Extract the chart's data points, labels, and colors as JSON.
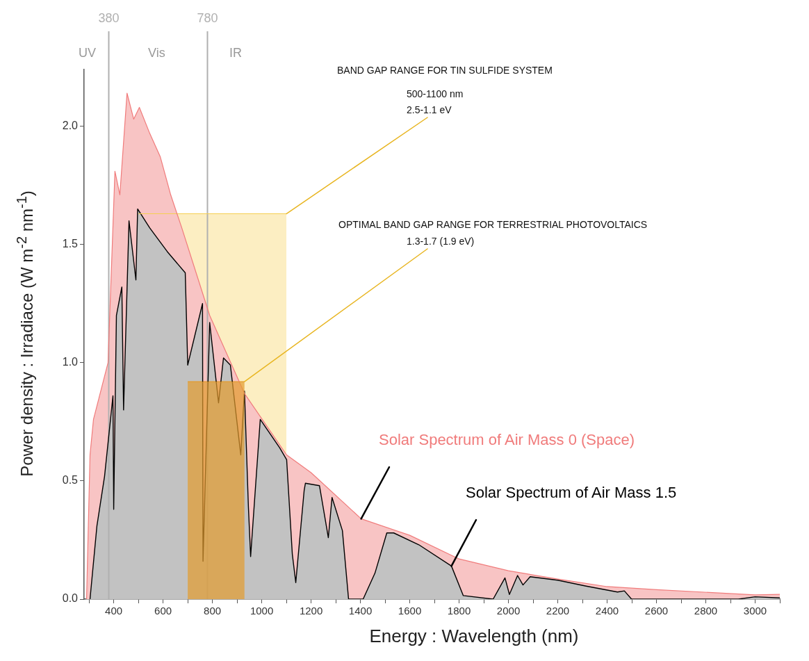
{
  "chart_data": {
    "type": "area",
    "xlabel": "Energy : Wavelength (nm)",
    "ylabel": "Power density : Irradiace (W m$^{-2}$ nm$^{-1}$)",
    "xlim": [
      280,
      3100
    ],
    "ylim": [
      0,
      2.24
    ],
    "xticks": [
      {
        "value": 300,
        "label": null
      },
      400,
      {
        "value": 500,
        "label": null
      },
      600,
      {
        "value": 700,
        "label": null
      },
      800,
      {
        "value": 900,
        "label": null
      },
      1000,
      {
        "value": 1100,
        "label": null
      },
      1200,
      {
        "value": 1300,
        "label": null
      },
      1400,
      {
        "value": 1500,
        "label": null
      },
      1600,
      {
        "value": 1700,
        "label": null
      },
      1800,
      {
        "value": 1900,
        "label": null
      },
      2000,
      {
        "value": 2100,
        "label": null
      },
      2200,
      {
        "value": 2300,
        "label": null
      },
      2400,
      {
        "value": 2500,
        "label": null
      },
      2600,
      {
        "value": 2700,
        "label": null
      },
      2800,
      {
        "value": 2900,
        "label": null
      },
      3000,
      {
        "value": 3100,
        "label": null
      }
    ],
    "yticks": [
      {
        "value": 0,
        "label": "0.0"
      },
      {
        "value": 0.5,
        "label": "0.5"
      },
      {
        "value": 1,
        "label": "1.0"
      },
      {
        "value": 1.5,
        "label": "1.5"
      },
      {
        "value": 2,
        "label": "2.0"
      }
    ],
    "series": [
      {
        "name": "Solar Spectrum of Air Mass 0 (Space)",
        "color": "#f07b7b",
        "x": [
          290,
          304,
          318,
          377,
          405,
          425,
          454,
          481,
          504,
          546,
          589,
          631,
          676,
          789,
          930,
          1101,
          1200,
          1403,
          1600,
          1800,
          2000,
          2200,
          2400,
          2600,
          3000,
          3100
        ],
        "values": [
          0,
          0.61,
          0.76,
          1.0,
          1.81,
          1.71,
          2.14,
          2.03,
          2.08,
          1.97,
          1.87,
          1.71,
          1.57,
          1.2,
          0.87,
          0.61,
          0.535,
          0.34,
          0.27,
          0.17,
          0.12,
          0.085,
          0.053,
          0.04,
          0.018,
          0.02
        ]
      },
      {
        "color": "#f5cf50",
        "x": [
          500,
          1100
        ],
        "values": [
          1.63,
          1.63
        ]
      },
      {
        "name": "Solar Spectrum of Air Mass 1.5",
        "color": "#000000",
        "x": [
          304,
          332,
          363,
          397,
          400,
          411,
          433,
          440,
          462,
          490,
          497,
          546,
          617,
          690,
          700,
          760,
          762,
          789,
          825,
          845,
          873,
          915,
          930,
          946,
          955,
          994,
          1073,
          1101,
          1124,
          1138,
          1172,
          1177,
          1234,
          1270,
          1285,
          1327,
          1352,
          1411,
          1459,
          1507,
          1535,
          1637,
          1769,
          1817,
          1938,
          1986,
          2004,
          2037,
          2059,
          2088,
          2200,
          2315,
          2442,
          2470,
          2499,
          2932,
          3000,
          3100
        ],
        "values": [
          0,
          0.31,
          0.52,
          0.86,
          0.38,
          1.2,
          1.32,
          0.8,
          1.6,
          1.35,
          1.65,
          1.57,
          1.47,
          1.38,
          0.99,
          1.25,
          0.16,
          1.17,
          0.83,
          1.02,
          0.99,
          0.61,
          0.88,
          0.39,
          0.18,
          0.76,
          0.64,
          0.59,
          0.19,
          0.07,
          0.46,
          0.49,
          0.48,
          0.26,
          0.43,
          0.29,
          0,
          0,
          0.11,
          0.28,
          0.28,
          0.23,
          0.14,
          0.015,
          0,
          0.09,
          0.02,
          0.1,
          0.06,
          0.095,
          0.08,
          0.055,
          0.03,
          0.035,
          0,
          0,
          0.01,
          0.005
        ]
      },
      {
        "color": "#e39b2e",
        "x": [
          700,
          930
        ],
        "values": [
          0.92,
          0.92
        ]
      }
    ],
    "ref_lines": [
      {
        "axis": "x",
        "value": 380,
        "label": "380",
        "color": "#b0b0b0"
      },
      {
        "axis": "x",
        "value": 780,
        "label": "780",
        "color": "#b0b0b0"
      }
    ],
    "annotations": [
      "BAND GAP RANGE FOR TIN SULFIDE SYSTEM",
      "500-1100 nm",
      {
        "text": "2.5-1.1 eV",
        "x": 1100,
        "y": 1.63
      },
      "OPTIMAL BAND GAP RANGE FOR TERRESTRIAL PHOTOVOLTAICS",
      {
        "text": "1.3-1.7 (1.9 eV)",
        "x": 930,
        "y": 0.92
      },
      "UV",
      "Vis",
      "IR"
    ]
  }
}
